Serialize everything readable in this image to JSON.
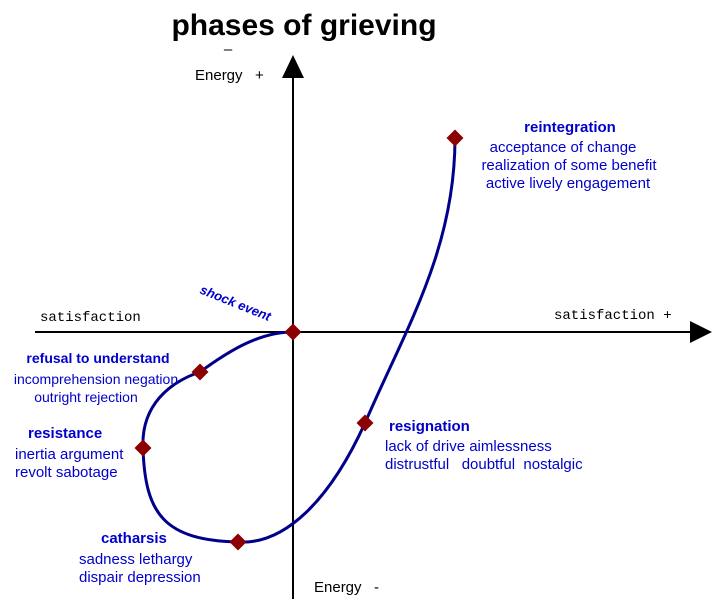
{
  "title": "phases of grieving",
  "colors": {
    "curve": "#00008b",
    "marker": "#8b0000",
    "label": "#0000cc",
    "axis": "#000000"
  },
  "axes": {
    "y_top_minus": "–",
    "y_top": "Energy   +",
    "y_bottom": "Energy   -",
    "x_left": "satisfaction",
    "x_right": "satisfaction +"
  },
  "shock_event": "shock event",
  "phases": {
    "reintegration": {
      "name": "reintegration",
      "lines": [
        "acceptance of change",
        "realization of some benefit",
        "active lively engagement"
      ]
    },
    "refusal": {
      "name": "refusal to understand",
      "lines": [
        "incomprehension negation",
        "outright rejection"
      ]
    },
    "resistance": {
      "name": "resistance",
      "lines": [
        "inertia argument",
        "revolt sabotage"
      ]
    },
    "catharsis": {
      "name": "catharsis",
      "lines": [
        "sadness lethargy",
        "dispair depression"
      ]
    },
    "resignation": {
      "name": "resignation",
      "lines": [
        "lack of drive aimlessness",
        "distrustful   doubtful  nostalgic"
      ]
    }
  }
}
